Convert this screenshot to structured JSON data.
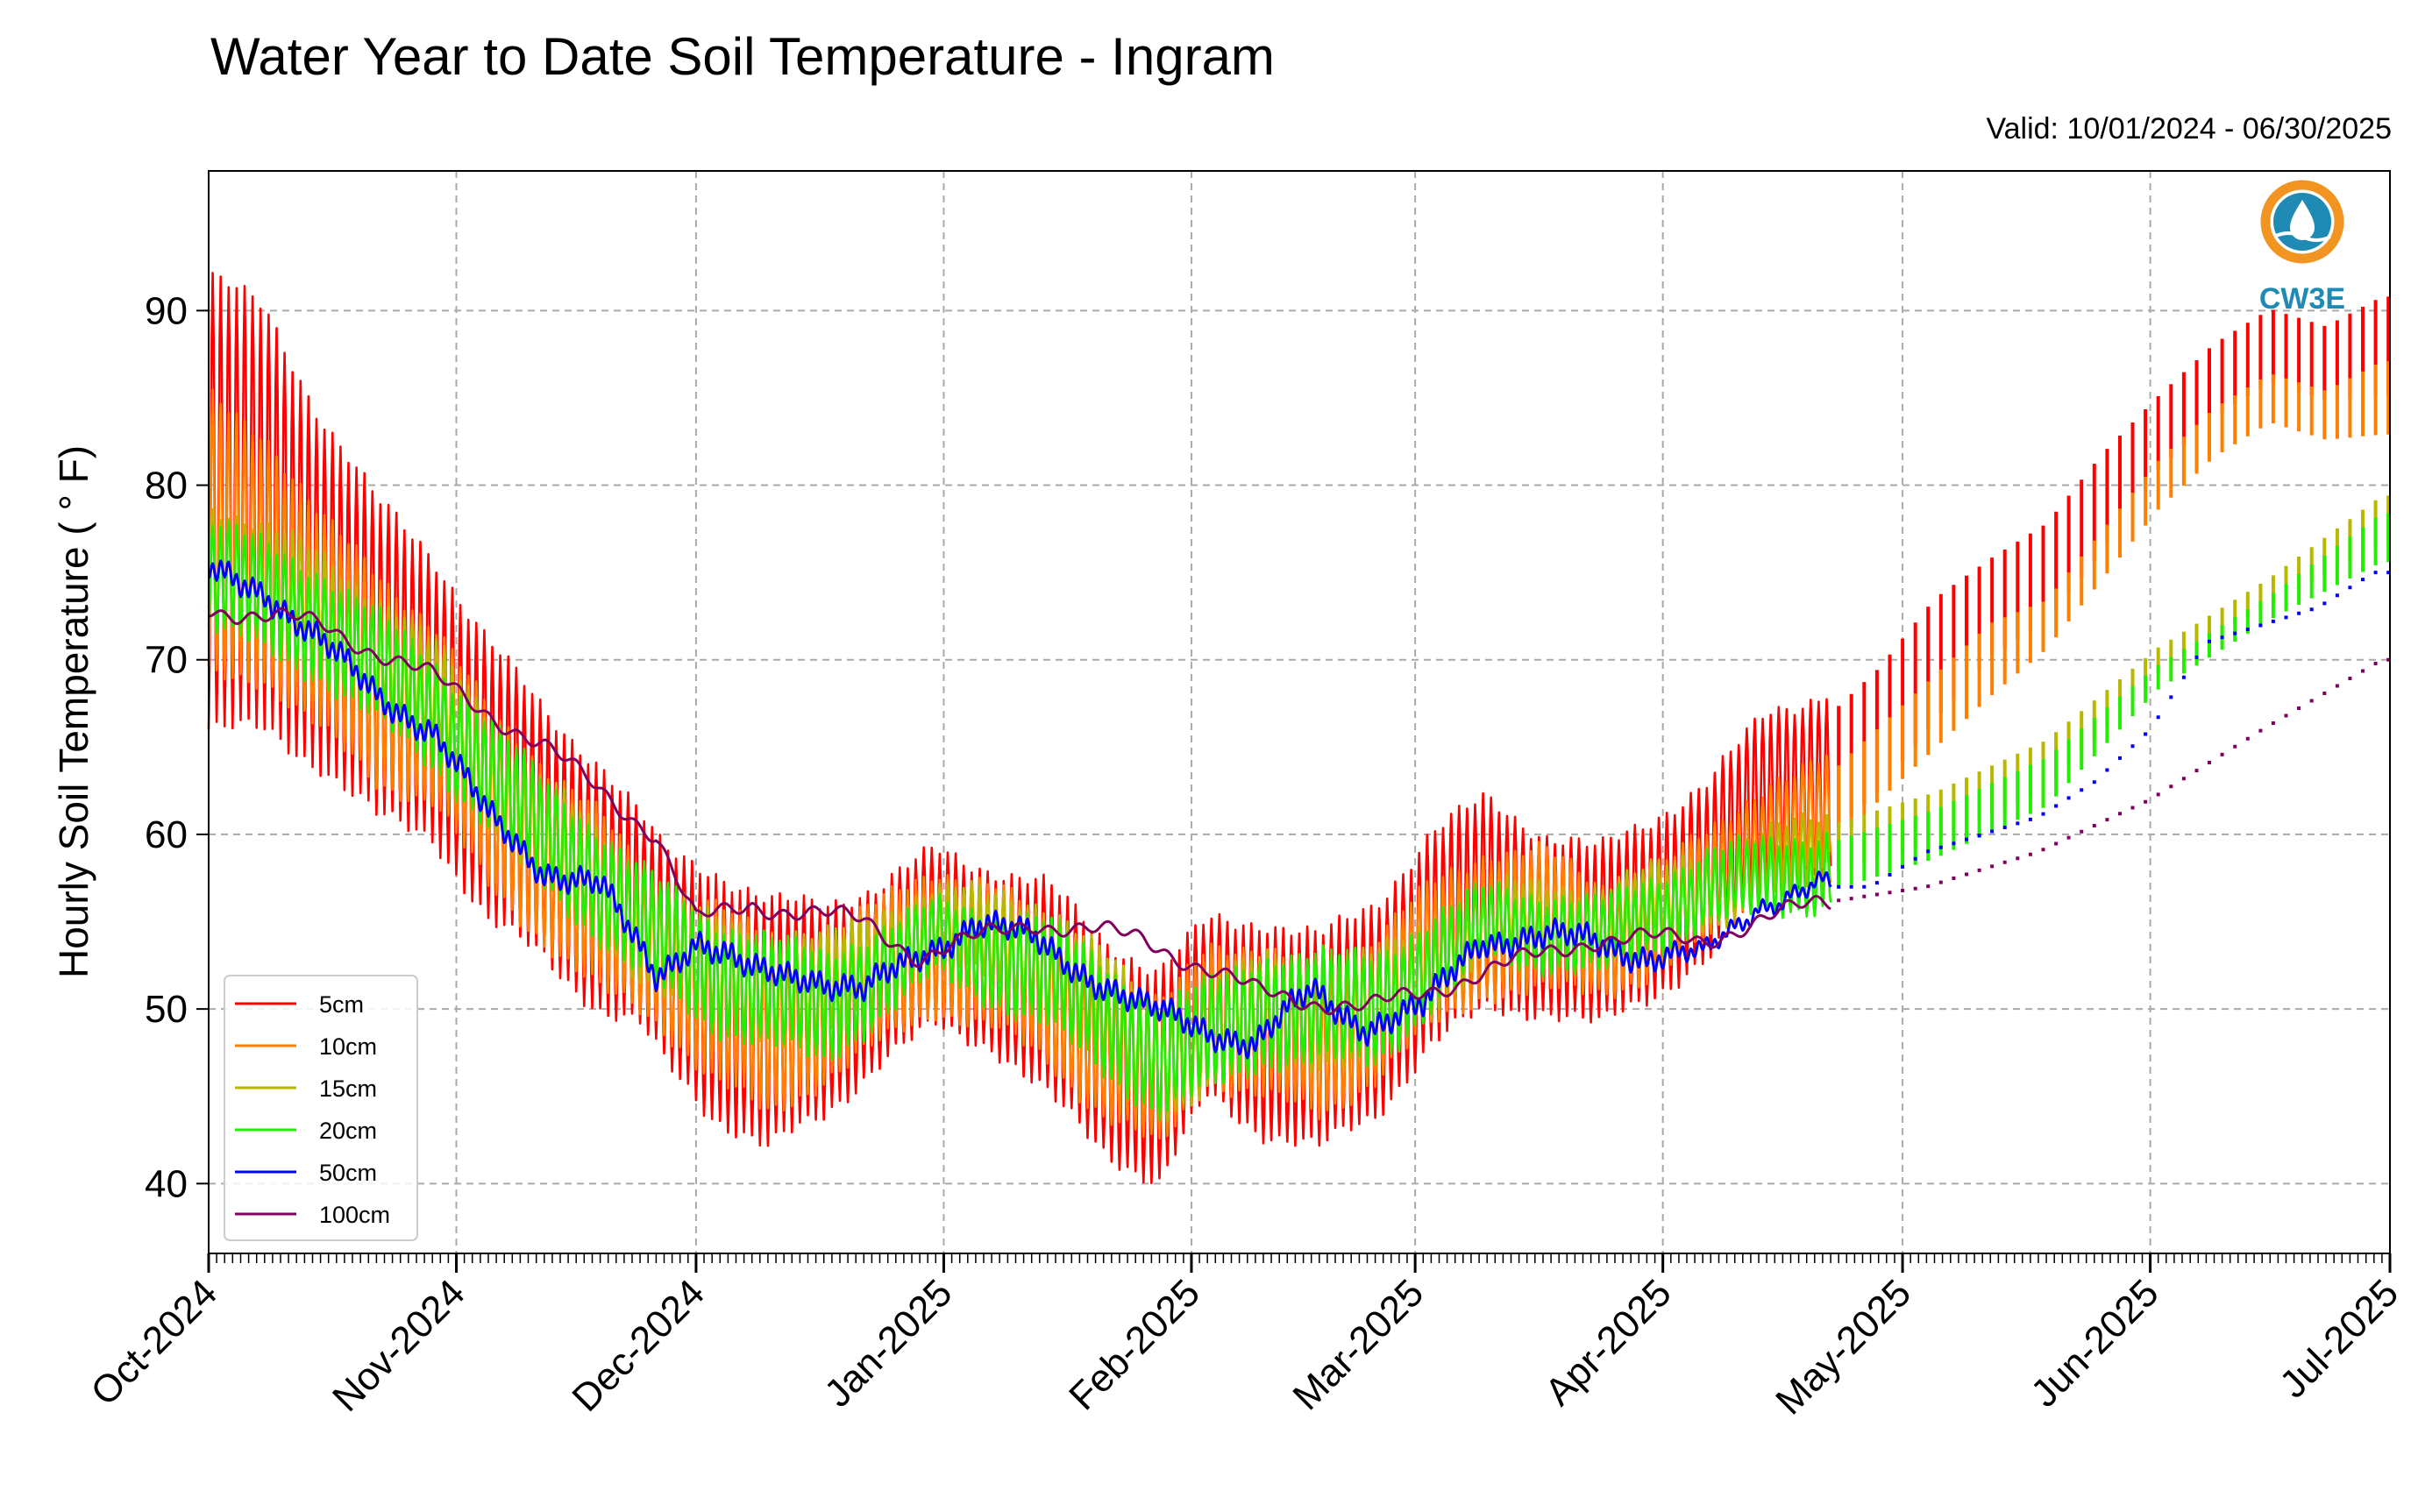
{
  "chart_data": {
    "type": "line",
    "title": "Water Year to Date Soil Temperature - Ingram",
    "subtitle": "Valid: 10/01/2024 - 06/30/2025",
    "xlabel": "",
    "ylabel": "Hourly Soil Temperature ( ° F)",
    "ylim": [
      36,
      98
    ],
    "yticks": [
      40,
      50,
      60,
      70,
      80,
      90
    ],
    "xlim": [
      "2024-10-01",
      "2025-07-01"
    ],
    "xticks": [
      "Oct-2024",
      "Nov-2024",
      "Dec-2024",
      "Jan-2025",
      "Feb-2025",
      "Mar-2025",
      "Apr-2025",
      "May-2025",
      "Jun-2025",
      "Jul-2025"
    ],
    "xtick_dates": [
      "2024-10-01",
      "2024-11-01",
      "2024-12-01",
      "2025-01-01",
      "2025-02-01",
      "2025-03-01",
      "2025-04-01",
      "2025-05-01",
      "2025-06-01",
      "2025-07-01"
    ],
    "grid": true,
    "legend_position": "lower-left",
    "logo_text": "CW3E",
    "series": [
      {
        "name": "5cm",
        "color": "#ff0000",
        "style": "line",
        "sparse_after": "2025-04-22",
        "dates": [
          "2024-10-01",
          "2024-10-08",
          "2024-10-15",
          "2024-10-22",
          "2024-10-29",
          "2024-11-05",
          "2024-11-12",
          "2024-11-19",
          "2024-11-24",
          "2024-11-27",
          "2024-12-03",
          "2024-12-10",
          "2024-12-17",
          "2024-12-24",
          "2024-12-31",
          "2025-01-07",
          "2025-01-14",
          "2025-01-21",
          "2025-01-28",
          "2025-02-03",
          "2025-02-10",
          "2025-02-17",
          "2025-02-24",
          "2025-03-03",
          "2025-03-10",
          "2025-03-17",
          "2025-03-24",
          "2025-03-31",
          "2025-04-07",
          "2025-04-14",
          "2025-04-21",
          "2025-04-28",
          "2025-05-05",
          "2025-05-12",
          "2025-05-19",
          "2025-05-26",
          "2025-06-02",
          "2025-06-09",
          "2025-06-16",
          "2025-06-23",
          "2025-06-30"
        ],
        "values": [
          79,
          78,
          74,
          70,
          68,
          63,
          60,
          57,
          55,
          53,
          51,
          49,
          50,
          52,
          54,
          53,
          51,
          48,
          46,
          50,
          49,
          48,
          50,
          54,
          56,
          55,
          54,
          56,
          58,
          62,
          63,
          66,
          70,
          73,
          75,
          79,
          83,
          86,
          88,
          87,
          88
        ],
        "amp": [
          13,
          12,
          10,
          9,
          8,
          8,
          7,
          7,
          6,
          6,
          7,
          7,
          6,
          5,
          5,
          5,
          6,
          6,
          6,
          5,
          6,
          6,
          6,
          6,
          6,
          5,
          5,
          5,
          5,
          5,
          5,
          5,
          5,
          4,
          4,
          4,
          3,
          3,
          3,
          3,
          4
        ]
      },
      {
        "name": "10cm",
        "color": "#ff8000",
        "style": "line",
        "sparse_after": "2025-04-22",
        "dates": [
          "2024-10-01",
          "2024-10-08",
          "2024-10-15",
          "2024-10-22",
          "2024-10-29",
          "2024-11-05",
          "2024-11-12",
          "2024-11-19",
          "2024-11-24",
          "2024-11-27",
          "2024-12-03",
          "2024-12-10",
          "2024-12-17",
          "2024-12-24",
          "2024-12-31",
          "2025-01-07",
          "2025-01-14",
          "2025-01-21",
          "2025-01-28",
          "2025-02-03",
          "2025-02-10",
          "2025-02-17",
          "2025-02-24",
          "2025-03-03",
          "2025-03-10",
          "2025-03-17",
          "2025-03-24",
          "2025-03-31",
          "2025-04-07",
          "2025-04-14",
          "2025-04-21",
          "2025-04-28",
          "2025-05-05",
          "2025-05-12",
          "2025-05-19",
          "2025-05-26",
          "2025-06-02",
          "2025-06-09",
          "2025-06-16",
          "2025-06-23",
          "2025-06-30"
        ],
        "values": [
          77,
          76,
          72,
          69,
          67,
          62,
          59,
          56,
          54,
          53,
          51,
          49,
          50,
          52,
          54,
          53,
          51,
          48,
          46,
          50,
          49,
          48,
          50,
          53,
          55,
          55,
          54,
          55,
          57,
          60,
          61,
          64,
          67,
          70,
          72,
          76,
          80,
          83,
          85,
          84,
          85
        ],
        "amp": [
          8,
          7,
          6,
          6,
          5,
          5,
          5,
          5,
          4,
          4,
          5,
          5,
          4,
          4,
          4,
          4,
          4,
          4,
          4,
          4,
          4,
          4,
          4,
          4,
          4,
          4,
          3,
          3,
          3,
          3,
          3,
          3,
          3,
          3,
          2,
          2,
          2,
          2,
          2,
          2,
          3
        ]
      },
      {
        "name": "15cm",
        "color": "#b8b800",
        "style": "line",
        "sparse_after": "2025-04-22",
        "dates": [
          "2024-10-01",
          "2024-10-15",
          "2024-10-29",
          "2024-11-12",
          "2024-11-24",
          "2024-12-03",
          "2024-12-17",
          "2024-12-31",
          "2025-01-14",
          "2025-01-28",
          "2025-02-10",
          "2025-02-24",
          "2025-03-10",
          "2025-03-24",
          "2025-04-07",
          "2025-04-21",
          "2025-05-05",
          "2025-05-19",
          "2025-06-02",
          "2025-06-16",
          "2025-06-30"
        ],
        "values": [
          76,
          73,
          68,
          60,
          55,
          52,
          51,
          55,
          53,
          47,
          50,
          50,
          55,
          55,
          57,
          59,
          61,
          64,
          70,
          74,
          78
        ],
        "amp": [
          3,
          3,
          3,
          3,
          3,
          3,
          3,
          2,
          3,
          3,
          3,
          3,
          2,
          2,
          2,
          2,
          2,
          2,
          1,
          1,
          2
        ]
      },
      {
        "name": "20cm",
        "color": "#22ee00",
        "style": "line",
        "sparse_after": "2025-04-22",
        "dates": [
          "2024-10-01",
          "2024-10-15",
          "2024-10-29",
          "2024-11-12",
          "2024-11-24",
          "2024-12-03",
          "2024-12-17",
          "2024-12-31",
          "2025-01-14",
          "2025-01-28",
          "2025-02-10",
          "2025-02-24",
          "2025-03-10",
          "2025-03-24",
          "2025-04-07",
          "2025-04-21",
          "2025-05-05",
          "2025-05-19",
          "2025-06-02",
          "2025-06-16",
          "2025-06-30"
        ],
        "values": [
          75,
          72,
          67,
          60,
          55,
          52,
          50,
          54,
          52,
          47,
          50,
          50,
          55,
          54,
          57,
          58,
          60,
          63,
          69,
          73,
          77
        ],
        "amp": [
          3,
          3,
          3,
          3,
          3,
          3,
          3,
          2,
          3,
          3,
          3,
          3,
          2,
          2,
          2,
          2,
          2,
          2,
          1,
          1,
          2
        ]
      },
      {
        "name": "50cm",
        "color": "#0000ff",
        "style": "line",
        "sparse_after": "2025-04-22",
        "dates": [
          "2024-10-01",
          "2024-10-08",
          "2024-10-15",
          "2024-10-22",
          "2024-10-29",
          "2024-11-05",
          "2024-11-12",
          "2024-11-19",
          "2024-11-26",
          "2024-12-01",
          "2024-12-08",
          "2024-12-15",
          "2024-12-22",
          "2024-12-29",
          "2025-01-05",
          "2025-01-12",
          "2025-01-19",
          "2025-01-26",
          "2025-02-02",
          "2025-02-09",
          "2025-02-16",
          "2025-02-23",
          "2025-03-02",
          "2025-03-09",
          "2025-03-16",
          "2025-03-23",
          "2025-03-30",
          "2025-04-06",
          "2025-04-13",
          "2025-04-20",
          "2025-04-27",
          "2025-05-04",
          "2025-05-11",
          "2025-05-18",
          "2025-05-25",
          "2025-06-01",
          "2025-06-08",
          "2025-06-15",
          "2025-06-22",
          "2025-06-29"
        ],
        "values": [
          75,
          74,
          71,
          68,
          66,
          61,
          58,
          57,
          52,
          54,
          52,
          52,
          51,
          53,
          55,
          54,
          52,
          50,
          49,
          48,
          51,
          49,
          50,
          54,
          54,
          54,
          53,
          53,
          56,
          57,
          57,
          59,
          60,
          61,
          63,
          66,
          71,
          72,
          73,
          75
        ],
        "amp": [
          0.5,
          0.5,
          0.5,
          0.5,
          0.5,
          0.5,
          0.5,
          0.5,
          0.5,
          0.5,
          0.5,
          0.5,
          0.5,
          0.5,
          0.5,
          0.5,
          0.5,
          0.5,
          0.5,
          0.5,
          0.5,
          0.5,
          0.5,
          0.5,
          0.5,
          0.5,
          0.5,
          0.3,
          0.3,
          0.3,
          0.3,
          0.3,
          0.3,
          0.3,
          0.3,
          0.3,
          0.3,
          0.3,
          0.3,
          0.3
        ]
      },
      {
        "name": "100cm",
        "color": "#800060",
        "style": "line",
        "sparse_after": "2025-04-22",
        "dates": [
          "2024-10-01",
          "2024-10-15",
          "2024-10-29",
          "2024-11-12",
          "2024-11-26",
          "2024-12-01",
          "2024-12-08",
          "2024-12-22",
          "2024-12-29",
          "2025-01-12",
          "2025-01-26",
          "2025-02-09",
          "2025-02-23",
          "2025-03-09",
          "2025-03-23",
          "2025-04-06",
          "2025-04-20",
          "2025-05-04",
          "2025-05-18",
          "2025-06-01",
          "2025-06-15",
          "2025-06-30"
        ],
        "values": [
          73,
          72,
          69,
          65,
          60,
          55,
          56,
          55,
          53,
          55,
          54,
          51,
          50,
          52,
          54,
          54,
          56,
          57,
          59,
          62,
          66,
          70
        ],
        "amp": [
          0,
          0,
          0,
          0,
          0,
          0,
          0,
          0,
          0,
          0,
          0,
          0,
          0,
          0,
          0,
          0,
          0,
          0,
          0,
          0,
          0,
          0
        ]
      }
    ]
  }
}
